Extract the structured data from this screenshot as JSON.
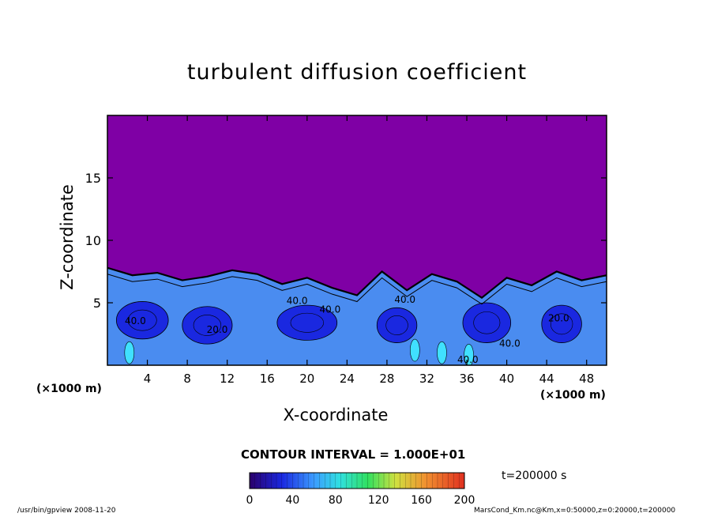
{
  "chart_data": {
    "type": "heatmap",
    "title": "turbulent diffusion coefficient",
    "xlabel": "X-coordinate",
    "ylabel": "Z-coordinate",
    "x_unit": "(×1000 m)",
    "x_unit_right": "(×1000 m)",
    "x_ticks": [
      4,
      8,
      12,
      16,
      20,
      24,
      28,
      32,
      36,
      40,
      44,
      48
    ],
    "y_ticks": [
      5,
      10,
      15
    ],
    "xlim": [
      0,
      50
    ],
    "ylim": [
      0,
      20
    ],
    "contour_interval_label": "CONTOUR INTERVAL = 1.000E+01",
    "contour_labels": [
      {
        "text": "40.0",
        "x": 2.8,
        "z": 3.3
      },
      {
        "text": "20.0",
        "x": 11.0,
        "z": 2.6
      },
      {
        "text": "40.0",
        "x": 19.0,
        "z": 4.9
      },
      {
        "text": "40.0",
        "x": 22.3,
        "z": 4.2
      },
      {
        "text": "40.0",
        "x": 29.8,
        "z": 5.0
      },
      {
        "text": "40.0",
        "x": 36.1,
        "z": 0.2
      },
      {
        "text": "40.0",
        "x": 40.3,
        "z": 1.5
      },
      {
        "text": "20.0",
        "x": 45.2,
        "z": 3.5
      }
    ],
    "colorbar": {
      "min": 0,
      "max": 200,
      "ticks": [
        0,
        40,
        80,
        120,
        160,
        200
      ]
    },
    "grid": false,
    "boundary_layer_top_km": [
      7.8,
      7.2,
      7.4,
      6.8,
      7.1,
      7.6,
      7.3,
      6.5,
      7.0,
      6.2,
      5.6,
      7.5,
      6.0,
      7.3,
      6.7,
      5.4,
      7.0,
      6.4,
      7.5,
      6.8,
      7.2
    ]
  },
  "time_label": "t=200000 s",
  "footer": {
    "left": "/usr/bin/gpview   2008-11-20",
    "right": "MarsCond_Km.nc@Km,x=0:50000,z=0:20000,t=200000"
  },
  "colors": {
    "background": "#7f00a5",
    "low": "#1a28e0",
    "mid": "#4a8cf0",
    "high": "#40e0ff"
  }
}
